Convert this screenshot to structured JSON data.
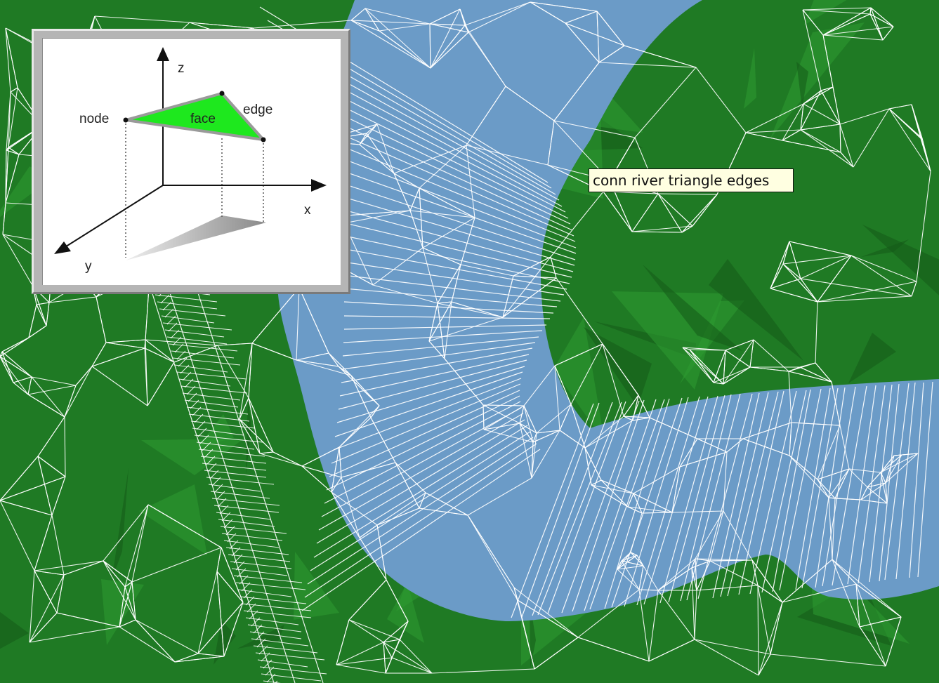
{
  "tooltip": {
    "text": "conn river triangle edges"
  },
  "diagram": {
    "axis_z": "z",
    "axis_x": "x",
    "axis_y": "y",
    "label_node": "node",
    "label_face": "face",
    "label_edge": "edge"
  },
  "colors": {
    "land_green": "#1f7a24",
    "land_dark": "#145a18",
    "land_light": "#2e9a32",
    "river_blue": "#6b9bc7",
    "mesh_edge": "#ffffff",
    "face_green": "#1ee81e",
    "shadow_gray": "#9a9a9a"
  }
}
